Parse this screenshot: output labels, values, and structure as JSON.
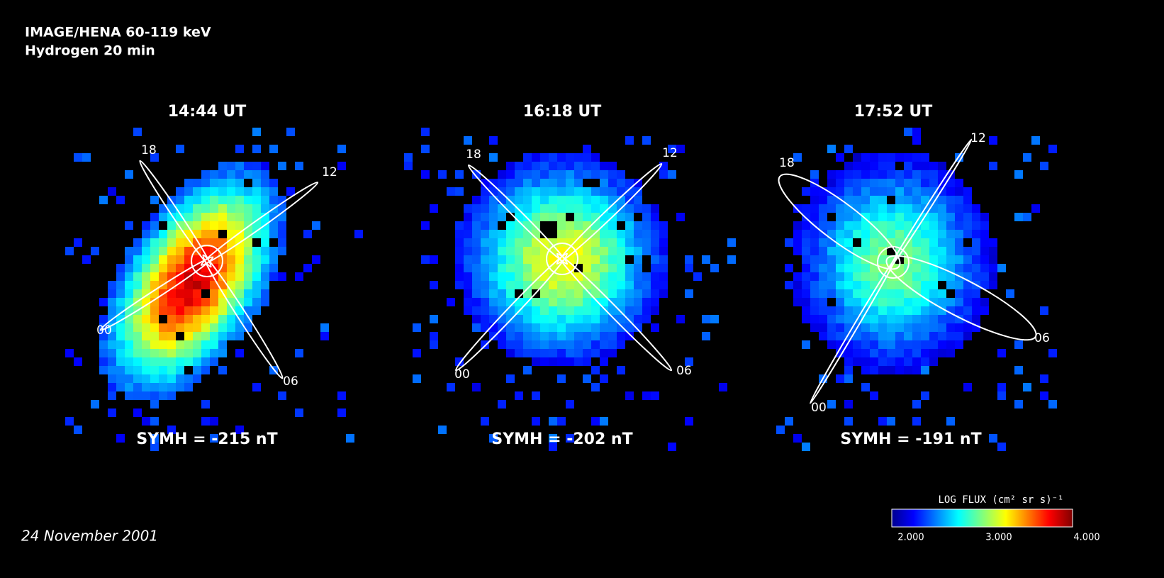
{
  "header": {
    "title": "IMAGE/HENA 60-119 keV",
    "subtitle": "Hydrogen 20 min"
  },
  "panels": [
    {
      "time": "14:44 UT",
      "symh": "SYMH = -215 nT",
      "local_times": [
        "18",
        "12",
        "00",
        "06"
      ]
    },
    {
      "time": "16:18 UT",
      "symh": "SYMH = -202 nT",
      "local_times": [
        "18",
        "12",
        "00",
        "06"
      ]
    },
    {
      "time": "17:52 UT",
      "symh": "SYMH = -191 nT",
      "local_times": [
        "18",
        "12",
        "00",
        "06"
      ]
    }
  ],
  "colorbar": {
    "label": "LOG FLUX (cm² sr s)⁻¹",
    "range": [
      2,
      4
    ],
    "ticks": [
      {
        "value": 2,
        "label": "2.000"
      },
      {
        "value": 3,
        "label": "3.000"
      },
      {
        "value": 4,
        "label": "4.000"
      }
    ]
  },
  "date": "24 November 2001"
}
